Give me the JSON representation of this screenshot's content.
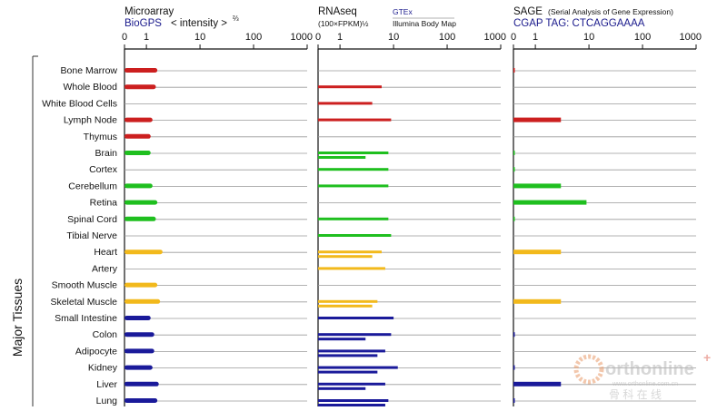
{
  "chart_data": {
    "type": "bar",
    "ylabel": "Major Tissues",
    "categories": [
      "Bone Marrow",
      "Whole Blood",
      "White Blood Cells",
      "Lymph Node",
      "Thymus",
      "Brain",
      "Cortex",
      "Cerebellum",
      "Retina",
      "Spinal Cord",
      "Tibial Nerve",
      "Heart",
      "Artery",
      "Smooth Muscle",
      "Skeletal Muscle",
      "Small Intestine",
      "Colon",
      "Adipocyte",
      "Kidney",
      "Liver",
      "Lung"
    ],
    "category_colors": [
      "#cc1f1f",
      "#cc1f1f",
      "#cc1f1f",
      "#cc1f1f",
      "#cc1f1f",
      "#1fbf1f",
      "#1fbf1f",
      "#1fbf1f",
      "#1fbf1f",
      "#1fbf1f",
      "#1fbf1f",
      "#f2b91c",
      "#f2b91c",
      "#f2b91c",
      "#f2b91c",
      "#1a1a9a",
      "#1a1a9a",
      "#1a1a9a",
      "#1a1a9a",
      "#1a1a9a",
      "#1a1a9a"
    ],
    "panels": [
      {
        "title": "Microarray",
        "subtitle": "BioGPS",
        "scale_label": "< intensity >",
        "scale_exp": "⅔",
        "tick_labels": [
          "0",
          "1",
          "10",
          "100",
          "1000"
        ],
        "xlim": [
          0,
          1000
        ],
        "series": [
          {
            "values": [
              1.6,
              1.5,
              null,
              1.3,
              1.2,
              1.2,
              null,
              1.3,
              1.6,
              1.5,
              null,
              2.0,
              null,
              1.6,
              1.8,
              1.2,
              1.4,
              1.4,
              1.3,
              1.7,
              1.6
            ]
          }
        ]
      },
      {
        "title": "RNAseq",
        "subtitle": "(100×FPKM)½",
        "source_label": "GTEx",
        "source_caption": "Illumina Body Map",
        "tick_labels": [
          "0",
          "1",
          "10",
          "100",
          "1000"
        ],
        "xlim": [
          0,
          1000
        ],
        "series": [
          {
            "values": [
              null,
              6,
              4,
              9,
              null,
              8,
              8,
              8,
              null,
              8,
              9,
              6,
              7,
              null,
              5,
              10,
              9,
              7,
              12,
              7,
              8
            ]
          },
          {
            "values": [
              null,
              null,
              null,
              null,
              null,
              3,
              null,
              null,
              null,
              null,
              null,
              4,
              null,
              null,
              4,
              null,
              3,
              5,
              5,
              3,
              7
            ]
          }
        ]
      },
      {
        "title": "SAGE",
        "subtitle_note": "(Serial Analysis of Gene Expression)",
        "tag_label": "CGAP TAG: CTCAGGAAAA",
        "tick_labels": [
          "0",
          "1",
          "10",
          "100",
          "1000"
        ],
        "xlim": [
          0,
          1000
        ],
        "series": [
          {
            "values": [
              0.05,
              null,
              null,
              3,
              null,
              0.05,
              0.05,
              3,
              9,
              0.05,
              null,
              3,
              null,
              null,
              3,
              null,
              0.05,
              null,
              0.05,
              3,
              0.05
            ]
          }
        ]
      }
    ]
  },
  "watermark": {
    "brand": "orthonline",
    "plus": "+",
    "url": "www.orthonline.com.cn",
    "cn": "骨 科 在 线"
  }
}
